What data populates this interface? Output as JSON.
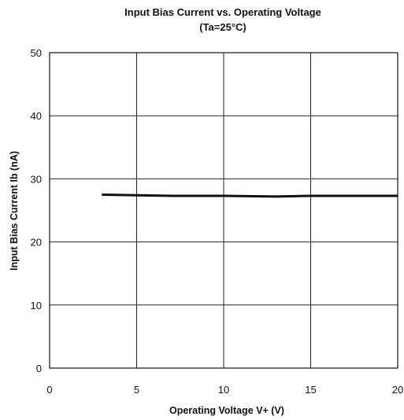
{
  "chart_data": {
    "type": "line",
    "title": "Input Bias Current vs. Operating Voltage",
    "subtitle": "(Ta=25°C)",
    "xlabel": "Operating Voltage V+ (V)",
    "ylabel": "Input Bias Current Ib (nA)",
    "xlim": [
      0,
      20
    ],
    "ylim": [
      0,
      50
    ],
    "xticks": [
      "0",
      "5",
      "10",
      "15",
      "20"
    ],
    "yticks": [
      "0",
      "10",
      "20",
      "30",
      "40",
      "50"
    ],
    "grid": true,
    "legend": "none",
    "series": [
      {
        "x": [
          3,
          5,
          7,
          10,
          13,
          15,
          17,
          20
        ],
        "values": [
          27.5,
          27.4,
          27.3,
          27.3,
          27.2,
          27.3,
          27.3,
          27.3
        ]
      }
    ],
    "line_color": "#111111"
  }
}
